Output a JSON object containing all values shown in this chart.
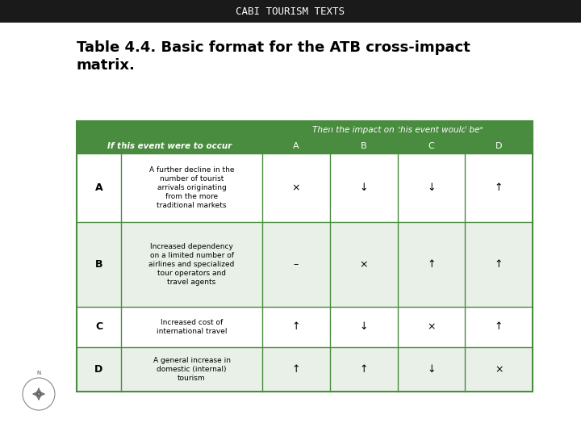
{
  "title_bar_text": "CABI TOURISM TEXTS",
  "title_bar_bg": "#1a1a1a",
  "title_bar_fg": "#ffffff",
  "table_title": "Table 4.4. Basic format for the ATB cross-impact\nmatrix.",
  "header_bg": "#4a8c3f",
  "header_fg": "#ffffff",
  "col_header_top": "Then the impact on this event would beᵃ",
  "col_headers_label": "If this event were to occur",
  "col_headers": [
    "A",
    "B",
    "C",
    "D"
  ],
  "row_labels": [
    "A",
    "B",
    "C",
    "D"
  ],
  "row_descriptions": [
    "A further decline in the\nnumber of tourist\narrivals originating\nfrom the more\ntraditional markets",
    "Increased dependency\non a limited number of\nairlines and specialized\ntour operators and\ntravel agents",
    "Increased cost of\ninternational travel",
    "A general increase in\ndomestic (internal)\ntourism"
  ],
  "cell_values": [
    [
      "×",
      "↓",
      "↓",
      "↑"
    ],
    [
      "–",
      "×",
      "↑",
      "↑"
    ],
    [
      "↑",
      "↓",
      "×",
      "↑"
    ],
    [
      "↑",
      "↑",
      "↓",
      "×"
    ]
  ],
  "row_bg_even": "#ffffff",
  "row_bg_odd": "#e8f0e8",
  "border_color": "#4a8c3f",
  "bg_color": "#ffffff"
}
